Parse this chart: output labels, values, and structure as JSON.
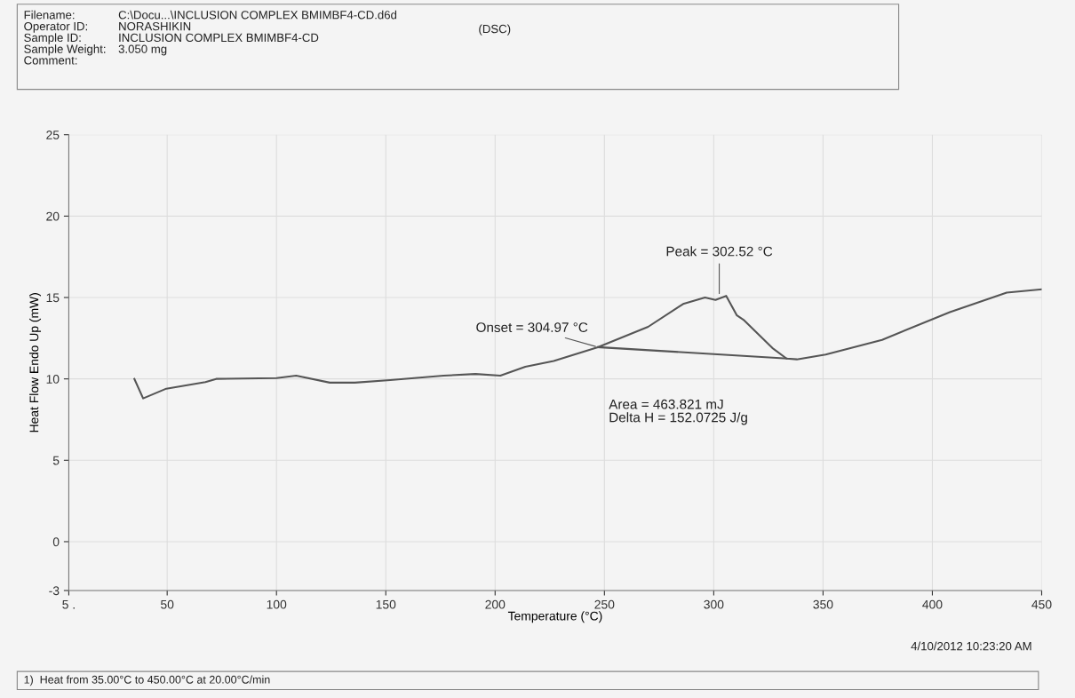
{
  "chart_data": {
    "type": "line",
    "xlabel": "Temperature (°C)",
    "ylabel": "Heat Flow Endo Up (mW)",
    "xlim": [
      5,
      450
    ],
    "xticks": [
      {
        "value": 5,
        "label": "5 ."
      },
      50,
      100,
      150,
      200,
      250,
      300,
      350,
      400,
      450
    ],
    "ylim": [
      -3,
      25
    ],
    "yticks": [
      -3,
      0,
      5,
      10,
      15,
      20,
      25
    ],
    "grid": true,
    "legend": false,
    "series": [
      {
        "color": "#555555",
        "x": [
          35,
          39,
          49.6,
          67.5,
          72.4,
          100,
          109,
          124.4,
          135.8,
          152,
          176.4,
          191,
          202.4,
          213.8,
          226.8,
          247,
          270,
          286,
          296,
          300.8,
          305.7,
          310.6,
          313.9,
          326.8,
          333.3,
          338,
          351.2,
          377,
          408,
          434,
          450
        ],
        "values": [
          10.0,
          8.8,
          9.4,
          9.8,
          10.0,
          10.05,
          10.2,
          9.77,
          9.77,
          9.93,
          10.2,
          10.3,
          10.2,
          10.75,
          11.1,
          11.95,
          13.2,
          14.6,
          15.0,
          14.85,
          15.1,
          13.9,
          13.6,
          11.9,
          11.25,
          11.2,
          11.5,
          12.4,
          14.1,
          15.3,
          15.5
        ]
      },
      {
        "color": "#555555",
        "x": [
          247,
          333.3
        ],
        "values": [
          11.95,
          11.25
        ]
      }
    ],
    "annotations": [
      {
        "text": "Onset = 304.97 °C",
        "x": 247,
        "y": 11.95
      },
      {
        "text": "Peak = 302.52 °C",
        "x": 302.52,
        "y": 15.1
      },
      "Area = 463.821 mJ\nDelta H = 152.0725 J/g",
      "Filename:\nOperator ID:\nSample ID:\nSample Weight:\nComment:",
      "C:\\Docu...\\INCLUSION COMPLEX BMIMBF4-CD.d6d\nNORASHIKIN\nINCLUSION COMPLEX BMIMBF4-CD\n3.050 mg",
      "(DSC)",
      "4/10/2012 10:23:20 AM",
      "1)  Heat from 35.00°C to 450.00°C at 20.00°C/min"
    ]
  }
}
